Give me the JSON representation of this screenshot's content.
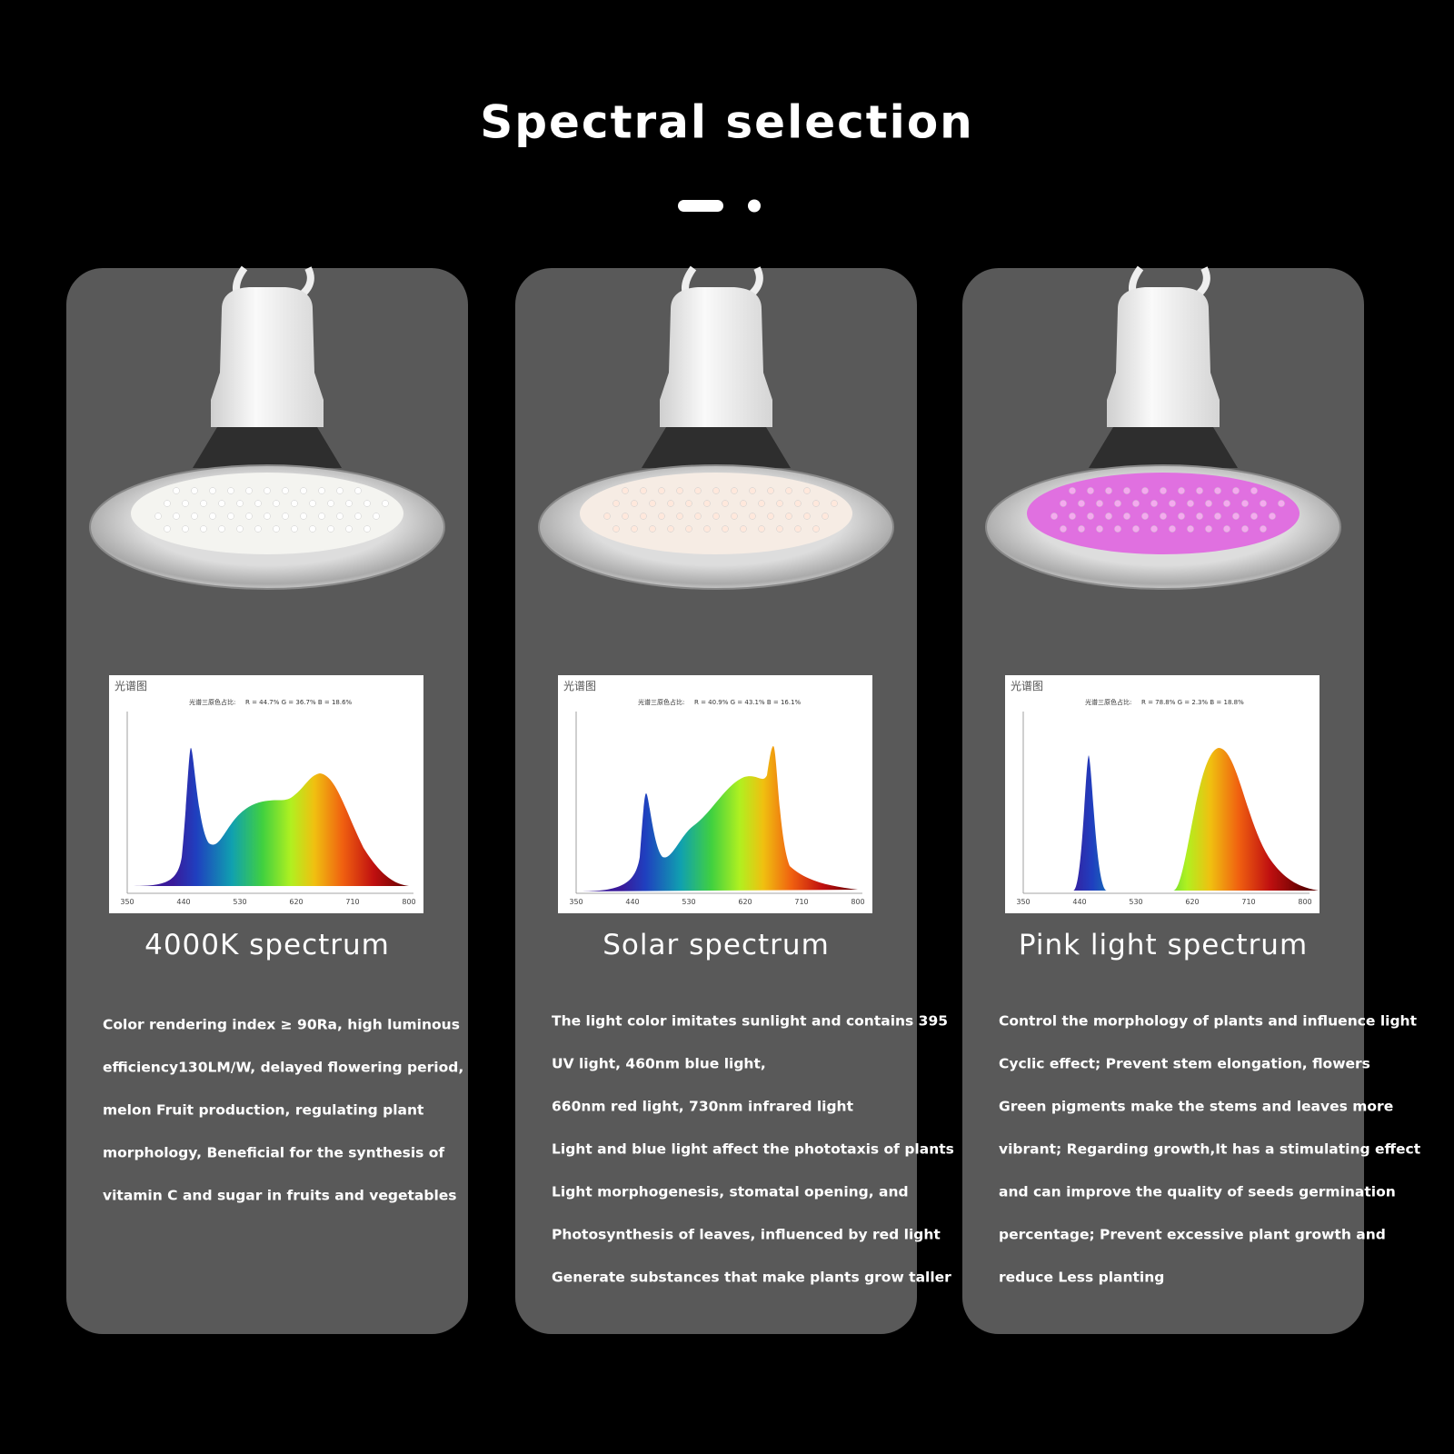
{
  "header": {
    "title": "Spectral selection"
  },
  "cards": [
    {
      "chart": {
        "title": "光谱图",
        "ratio_label": "光谱三原色占比:",
        "ratio": "R = 44.7% G = 36.7% B = 18.6%",
        "x_ticks": [
          "350",
          "440",
          "530",
          "620",
          "710",
          "800"
        ]
      },
      "name": "4000K spectrum",
      "lines": [
        "Color rendering index ≥ 90Ra, high luminous",
        "efficiency130LM/W, delayed flowering period,",
        "melon Fruit production, regulating plant",
        "morphology, Beneficial for the synthesis of",
        "vitamin C and sugar in fruits and vegetables"
      ]
    },
    {
      "chart": {
        "title": "光谱图",
        "ratio_label": "光谱三原色占比:",
        "ratio": "R = 40.9% G = 43.1% B = 16.1%",
        "x_ticks": [
          "350",
          "440",
          "530",
          "620",
          "710",
          "800"
        ]
      },
      "name": "Solar spectrum",
      "lines": [
        "The light color imitates sunlight and contains 395",
        "UV light, 460nm blue light,",
        "660nm red light, 730nm infrared light",
        "Light and blue light affect the phototaxis of plants",
        "Light morphogenesis, stomatal opening, and",
        "Photosynthesis of leaves, influenced by red light",
        "Generate substances that make plants grow taller"
      ]
    },
    {
      "chart": {
        "title": "光谱图",
        "ratio_label": "光谱三原色占比:",
        "ratio": "R = 78.8% G = 2.3% B = 18.8%",
        "x_ticks": [
          "350",
          "440",
          "530",
          "620",
          "710",
          "800"
        ]
      },
      "name": "Pink light spectrum",
      "lines": [
        "Control the morphology of plants and influence light",
        "Cyclic effect; Prevent stem elongation, flowers",
        "Green pigments make the stems and leaves more",
        "vibrant; Regarding growth,It has a stimulating effect",
        "and can improve the quality of seeds germination",
        "percentage; Prevent excessive plant growth and",
        "reduce Less planting"
      ]
    }
  ]
}
